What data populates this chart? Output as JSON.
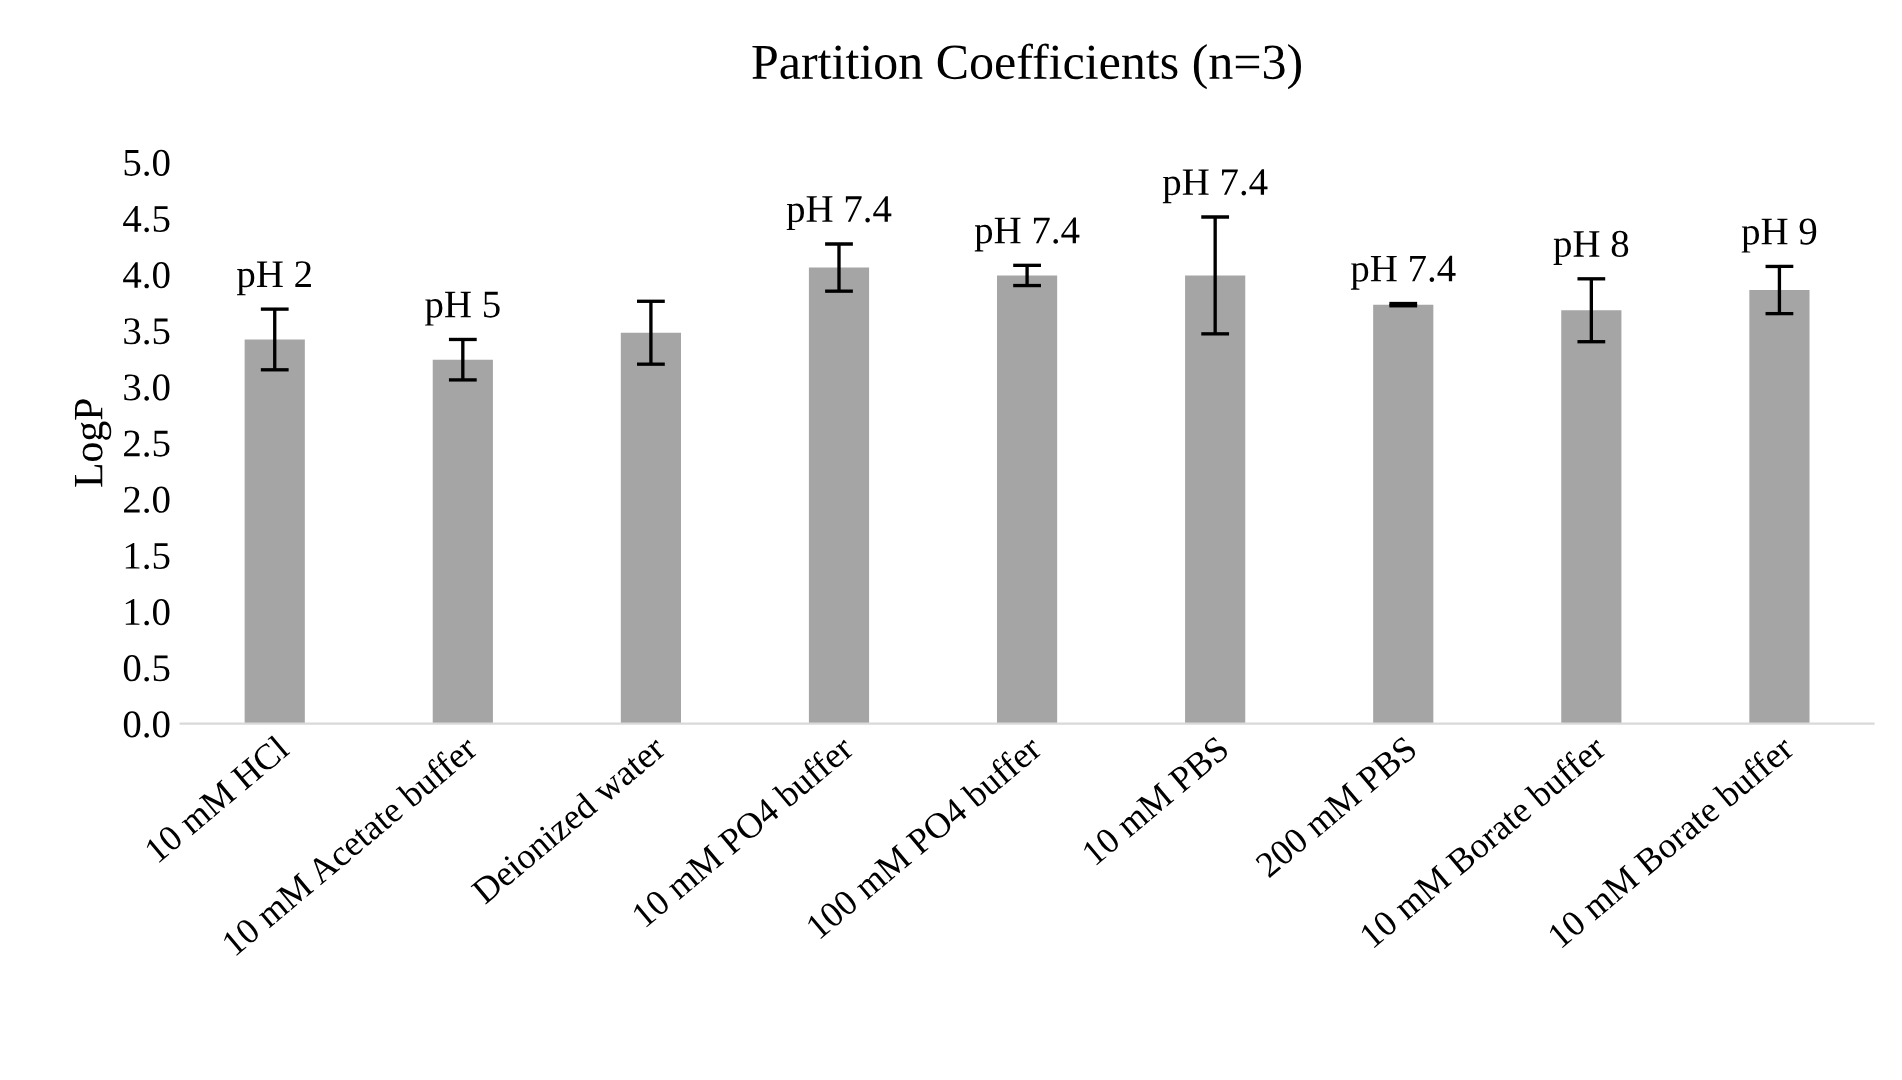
{
  "chart_data": {
    "type": "bar",
    "title": "Partition Coefficients (n=3)",
    "ylabel": "LogP",
    "categories": [
      "10 mM HCl",
      "10 mM Acetate buffer",
      "Deionized water",
      "10 mM PO4 buffer",
      "100 mM PO4 buffer",
      "10 mM PBS",
      "200 mM PBS",
      "10 mM Borate buffer",
      "10 mM Borate buffer"
    ],
    "values": [
      3.42,
      3.24,
      3.48,
      4.06,
      3.99,
      3.99,
      3.73,
      3.68,
      3.86
    ],
    "errors": [
      0.27,
      0.18,
      0.28,
      0.21,
      0.09,
      0.52,
      0.01,
      0.28,
      0.21
    ],
    "color": "#a5a5a5",
    "ylim": [
      0,
      5
    ],
    "yticks": [
      {
        "value": 0,
        "label": "0.0"
      },
      {
        "value": 0.5,
        "label": "0.5"
      },
      {
        "value": 1,
        "label": "1.0"
      },
      {
        "value": 1.5,
        "label": "1.5"
      },
      {
        "value": 2,
        "label": "2.0"
      },
      {
        "value": 2.5,
        "label": "2.5"
      },
      {
        "value": 3,
        "label": "3.0"
      },
      {
        "value": 3.5,
        "label": "3.5"
      },
      {
        "value": 4,
        "label": "4.0"
      },
      {
        "value": 4.5,
        "label": "4.5"
      },
      {
        "value": 5,
        "label": "5.0"
      }
    ],
    "annotations": [
      {
        "text": "pH 2",
        "x": "10 mM HCl",
        "y": 3.69
      },
      {
        "text": "pH 5",
        "x": "10 mM Acetate buffer",
        "y": 3.42
      },
      {
        "text": "pH 7.4",
        "x": "10 mM PO4 buffer",
        "y": 4.27
      },
      {
        "text": "pH 7.4",
        "x": "100 mM PO4 buffer",
        "y": 4.08
      },
      {
        "text": "pH 7.4",
        "x": "10 mM PBS",
        "y": 4.51
      },
      {
        "text": "pH 7.4",
        "x": "200 mM PBS",
        "y": 3.74
      },
      {
        "text": "pH 8",
        "x": "10 mM Borate buffer",
        "y": 3.96
      },
      {
        "text": "pH 9",
        "y": 4.07
      }
    ],
    "grid": false,
    "legend": false
  }
}
